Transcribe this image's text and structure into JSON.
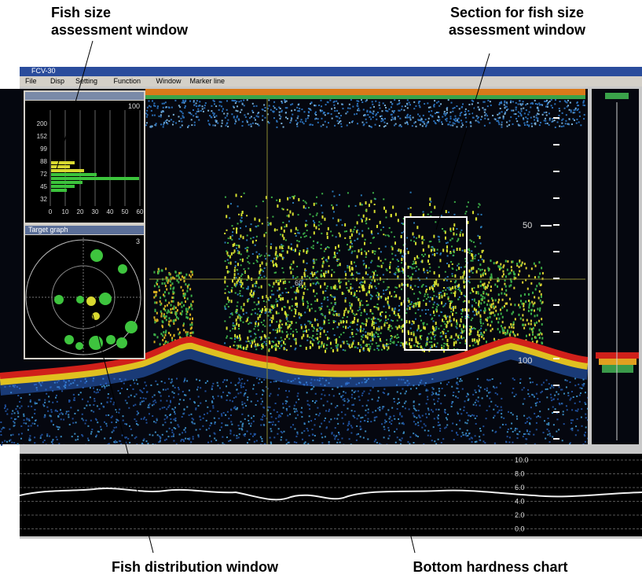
{
  "callouts": [
    {
      "lines": [
        "Fish size",
        "assessment window"
      ]
    },
    {
      "lines": [
        "Section for fish size",
        "assessment window"
      ]
    },
    {
      "lines": [
        "Fish distribution window"
      ]
    },
    {
      "lines": [
        "Bottom hardness chart"
      ]
    }
  ],
  "window": {
    "title": "FCV-30",
    "menu": [
      "File",
      "Disp",
      "Setting",
      "Function",
      "Window",
      "Marker line"
    ]
  },
  "echogram": {
    "depth_labels": [
      "50",
      "100"
    ],
    "cursor_label": "69"
  },
  "histogram": {
    "max_label": "100",
    "y_labels": [
      "200",
      "152",
      "99",
      "88",
      "72",
      "45",
      "32"
    ],
    "x_labels": [
      "0",
      "10",
      "20",
      "30",
      "40",
      "50",
      "60"
    ]
  },
  "distribution": {
    "title": "Target graph",
    "count": "3"
  },
  "hardness": {
    "labels": [
      "10.0",
      "8.0",
      "6.0",
      "4.0",
      "2.0",
      "0.0"
    ]
  }
}
